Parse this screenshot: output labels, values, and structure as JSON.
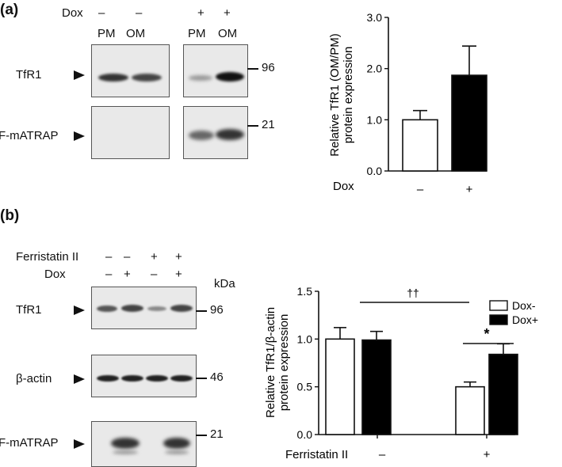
{
  "panel_a": {
    "label": "(a)",
    "dox_label": "Dox",
    "dox_marks": [
      "–",
      "–",
      "+",
      "+"
    ],
    "lanes": [
      "PM",
      "OM",
      "PM",
      "OM"
    ],
    "rows": [
      {
        "name": "TfR1",
        "kda": "96"
      },
      {
        "name": "F-mATRAP",
        "kda": "21"
      }
    ]
  },
  "panel_b": {
    "label": "(b)",
    "ferristatin_label": "Ferristatin II",
    "ferristatin_marks": [
      "–",
      "–",
      "+",
      "+"
    ],
    "dox_label": "Dox",
    "dox_marks": [
      "–",
      "+",
      "–",
      "+"
    ],
    "kda_label": "kDa",
    "rows": [
      {
        "name": "TfR1",
        "kda": "96"
      },
      {
        "name": "β-actin",
        "kda": "46"
      },
      {
        "name": "F-mATRAP",
        "kda": "21"
      }
    ]
  },
  "chart_data": [
    {
      "type": "bar",
      "ylabel": "Relative TfR1 (OM/PM)\nprotein expression",
      "xlabel": "Dox",
      "categories": [
        "–",
        "+"
      ],
      "values": [
        1.0,
        1.87
      ],
      "errors": [
        0.18,
        0.57
      ],
      "colors": [
        "#ffffff",
        "#000000"
      ],
      "ylim": [
        0,
        3.0
      ],
      "yticks": [
        "0.0",
        "1.0",
        "2.0",
        "3.0"
      ]
    },
    {
      "type": "bar",
      "ylabel": "Relative TfR1/β-actin\nprotein expression",
      "xlabel": "Ferristatin II",
      "categories": [
        "–",
        "+"
      ],
      "series": [
        {
          "name": "Dox-",
          "values": [
            1.0,
            0.5
          ],
          "errors": [
            0.12,
            0.05
          ],
          "color": "#ffffff"
        },
        {
          "name": "Dox+",
          "values": [
            0.99,
            0.84
          ],
          "errors": [
            0.09,
            0.11
          ],
          "color": "#000000"
        }
      ],
      "ylim": [
        0,
        1.5
      ],
      "yticks": [
        "0.0",
        "0.5",
        "1.0",
        "1.5"
      ],
      "annotations": [
        "††",
        "*"
      ],
      "legend": "top-right"
    }
  ]
}
